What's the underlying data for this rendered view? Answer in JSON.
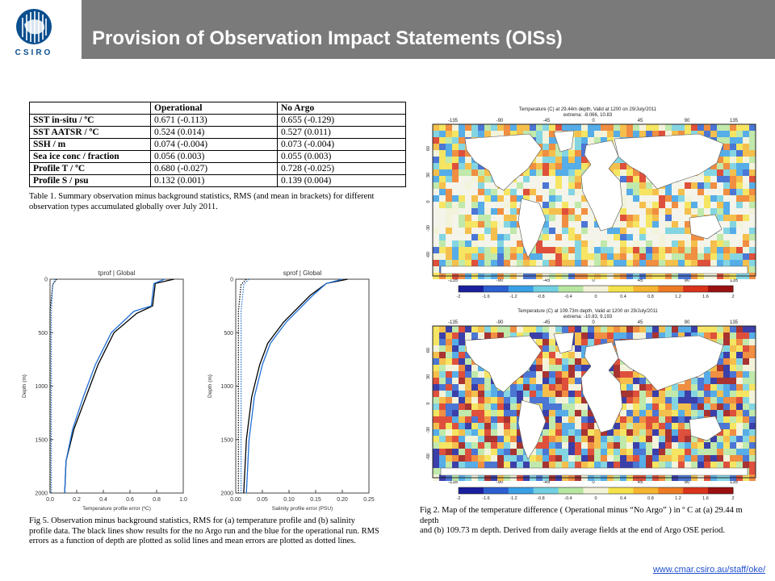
{
  "header": {
    "logo_text": "CSIRO",
    "title": "Provision of Observation Impact Statements (OISs)",
    "colors": {
      "bar": "#7a7a7a",
      "title": "#ffffff",
      "logo": "#0a4f8f"
    }
  },
  "table1": {
    "headers": [
      "",
      "Operational",
      "No Argo"
    ],
    "rows": [
      [
        "SST in-situ / ºC",
        "0.671 (-0.113)",
        "0.655 (-0.129)"
      ],
      [
        "SST AATSR / ºC",
        "0.524 (0.014)",
        "0.527 (0.011)"
      ],
      [
        "SSH / m",
        "0.074 (-0.004)",
        "0.073 (-0.004)"
      ],
      [
        "Sea ice conc / fraction",
        "0.056 (0.003)",
        "0.055 (0.003)"
      ],
      [
        "Profile T / ºC",
        "0.680 (-0.027)",
        "0.728 (-0.025)"
      ],
      [
        "Profile S / psu",
        "0.132 (0.001)",
        "0.139 (0.004)"
      ]
    ],
    "caption_line1": "Table 1. Summary observation minus background statistics, RMS (and mean in brackets) for different",
    "caption_line2": "observation types accumulated globally over July 2011."
  },
  "chart_data": [
    {
      "type": "line",
      "title": "tprof | Global",
      "xlabel": "Temperature profile error (ºC)",
      "ylabel": "Depth (m)",
      "xlim": [
        0,
        1.0
      ],
      "ylim": [
        2000,
        0
      ],
      "xticks": [
        "0.0",
        "0.2",
        "0.4",
        "0.6",
        "0.8",
        "1.0"
      ],
      "yticks": [
        "0",
        "500",
        "1000",
        "1500",
        "2000"
      ],
      "series": [
        {
          "color": "#000000",
          "style": "solid",
          "x": [
            0.93,
            0.79,
            0.77,
            0.65,
            0.48,
            0.36,
            0.27,
            0.18,
            0.12,
            0.11
          ],
          "y": [
            0,
            40,
            250,
            320,
            500,
            800,
            1100,
            1400,
            1700,
            2000
          ]
        },
        {
          "color": "#1f6fd6",
          "style": "solid",
          "x": [
            0.86,
            0.78,
            0.76,
            0.63,
            0.46,
            0.34,
            0.25,
            0.17,
            0.12,
            0.11
          ],
          "y": [
            0,
            40,
            250,
            300,
            500,
            800,
            1100,
            1400,
            1700,
            2000
          ]
        },
        {
          "color": "#000000",
          "style": "dotted",
          "x": [
            0.05,
            0.02,
            0.0,
            0.0,
            0.0
          ],
          "y": [
            0,
            50,
            300,
            1000,
            2000
          ]
        },
        {
          "color": "#1f6fd6",
          "style": "dotted",
          "x": [
            0.04,
            0.02,
            0.01,
            0.01,
            0.01
          ],
          "y": [
            0,
            50,
            300,
            1000,
            2000
          ]
        }
      ]
    },
    {
      "type": "line",
      "title": "sprof | Global",
      "xlabel": "Salinity profile error (PSU)",
      "ylabel": "Depth (m)",
      "xlim": [
        0,
        0.25
      ],
      "ylim": [
        2000,
        0
      ],
      "xticks": [
        "0.00",
        "0.05",
        "0.10",
        "0.15",
        "0.20",
        "0.25"
      ],
      "yticks": [
        "0",
        "500",
        "1000",
        "1500",
        "2000"
      ],
      "series": [
        {
          "color": "#000000",
          "style": "solid",
          "x": [
            0.21,
            0.17,
            0.14,
            0.12,
            0.09,
            0.06,
            0.045,
            0.03,
            0.02,
            0.015
          ],
          "y": [
            0,
            40,
            150,
            250,
            400,
            600,
            800,
            1100,
            1500,
            2000
          ]
        },
        {
          "color": "#1f6fd6",
          "style": "solid",
          "x": [
            0.2,
            0.17,
            0.145,
            0.125,
            0.095,
            0.065,
            0.05,
            0.035,
            0.025,
            0.02
          ],
          "y": [
            0,
            40,
            150,
            250,
            400,
            600,
            800,
            1100,
            1500,
            2000
          ]
        },
        {
          "color": "#000000",
          "style": "dotted",
          "x": [
            0.02,
            0.01,
            0.005,
            0.005,
            0.005
          ],
          "y": [
            0,
            50,
            300,
            1000,
            2000
          ]
        },
        {
          "color": "#1f6fd6",
          "style": "dotted",
          "x": [
            0.025,
            0.015,
            0.01,
            0.01,
            0.01
          ],
          "y": [
            0,
            50,
            300,
            1000,
            2000
          ]
        }
      ]
    }
  ],
  "fig5": {
    "caption_line1": "Fig 5. Observation minus background statistics, RMS for (a) temperature profile and  (b) salinity",
    "caption_line2": "profile data. The black lines show results for the no Argo run and the blue for the operational run. RMS",
    "caption_line3": "errors as a function of depth are plotted as solid lines and mean errors are plotted as dotted lines."
  },
  "maps": [
    {
      "title_line1": "Temperature (C) at 29.44m depth, Valid at 1200 on 29/July/2011",
      "title_line2": "extrema: -8.066, 10.83",
      "lon_ticks": [
        "-135",
        "-90",
        "-45",
        "0",
        "45",
        "90",
        "135"
      ],
      "lat_ticks": [
        "60",
        "30",
        "0",
        "-30",
        "-60"
      ],
      "colorbar_ticks": [
        "-2",
        "-1.6",
        "-1.2",
        "-0.8",
        "-0.4",
        "0",
        "0.4",
        "0.8",
        "1.2",
        "1.6",
        "2"
      ]
    },
    {
      "title_line1": "Temperature (C) at 109.73m depth, Valid at 1200 on 29/July/2011",
      "title_line2": "extrema: -10.83, 9.193",
      "lon_ticks": [
        "-135",
        "-90",
        "-45",
        "0",
        "45",
        "90",
        "135"
      ],
      "lat_ticks": [
        "60",
        "30",
        "0",
        "-30",
        "-60"
      ],
      "colorbar_ticks": [
        "-2",
        "-1.6",
        "-1.2",
        "-0.8",
        "-0.4",
        "0",
        "0.4",
        "0.8",
        "1.2",
        "1.6",
        "2"
      ]
    }
  ],
  "fig2": {
    "caption_line1": "Fig 2. Map of the temperature difference ( Operational minus “No Argo” ) in º C at (a) 29.44 m depth",
    "caption_line2": "and (b) 109.73 m depth. Derived from daily average fields at the end of Argo OSE period."
  },
  "footer": {
    "url": "www.cmar.csiro.au/staff/oke/"
  }
}
